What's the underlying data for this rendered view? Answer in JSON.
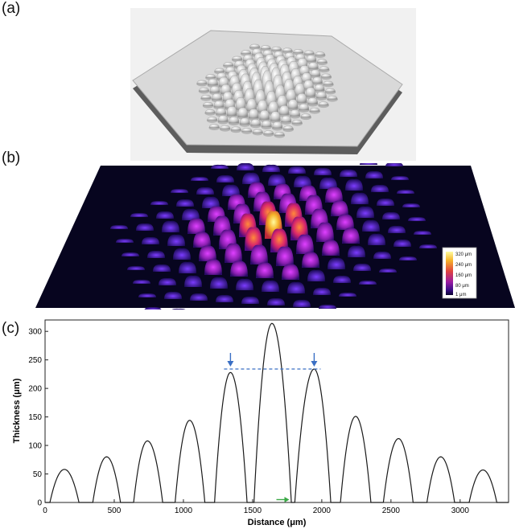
{
  "labels": {
    "a": "(a)",
    "b": "(b)",
    "c": "(c)"
  },
  "colorbar": {
    "ticks": [
      "320 μm",
      "240 μm",
      "160 μm",
      "80 μm",
      "1 μm"
    ],
    "colors": [
      "#fffca0",
      "#f6b42a",
      "#e0433e",
      "#9a1aa3",
      "#3b0e87",
      "#0a0330"
    ]
  },
  "chart_data": {
    "type": "line",
    "xlabel": "Distance (μm)",
    "ylabel": "Thickness (μm)",
    "xlim": [
      0,
      3350
    ],
    "ylim": [
      0,
      320
    ],
    "xticks": [
      0,
      500,
      1000,
      1500,
      2000,
      2500,
      3000
    ],
    "yticks": [
      0,
      50,
      100,
      150,
      200,
      250,
      300
    ],
    "grid": false,
    "series": [
      {
        "peaks": [
          {
            "x": 140,
            "y": 58,
            "x0": 35,
            "x1": 245
          },
          {
            "x": 445,
            "y": 80,
            "x0": 345,
            "x1": 545
          },
          {
            "x": 740,
            "y": 108,
            "x0": 640,
            "x1": 850
          },
          {
            "x": 1045,
            "y": 144,
            "x0": 940,
            "x1": 1155
          },
          {
            "x": 1340,
            "y": 228,
            "x0": 1225,
            "x1": 1460
          },
          {
            "x": 1640,
            "y": 314,
            "x0": 1510,
            "x1": 1780
          },
          {
            "x": 1945,
            "y": 234,
            "x0": 1805,
            "x1": 2065
          },
          {
            "x": 2245,
            "y": 151,
            "x0": 2135,
            "x1": 2355
          },
          {
            "x": 2555,
            "y": 112,
            "x0": 2445,
            "x1": 2660
          },
          {
            "x": 2860,
            "y": 80,
            "x0": 2760,
            "x1": 2960
          },
          {
            "x": 3165,
            "y": 57,
            "x0": 3065,
            "x1": 3265
          }
        ]
      }
    ],
    "annotations": {
      "dashed_level": 234,
      "dashed_from": 1340,
      "dashed_to": 1945,
      "arrow_color": "#3a6fc4",
      "green_arrow_color": "#3aa845",
      "green_arrow_x": 1800,
      "green_arrow_y": 5
    }
  }
}
